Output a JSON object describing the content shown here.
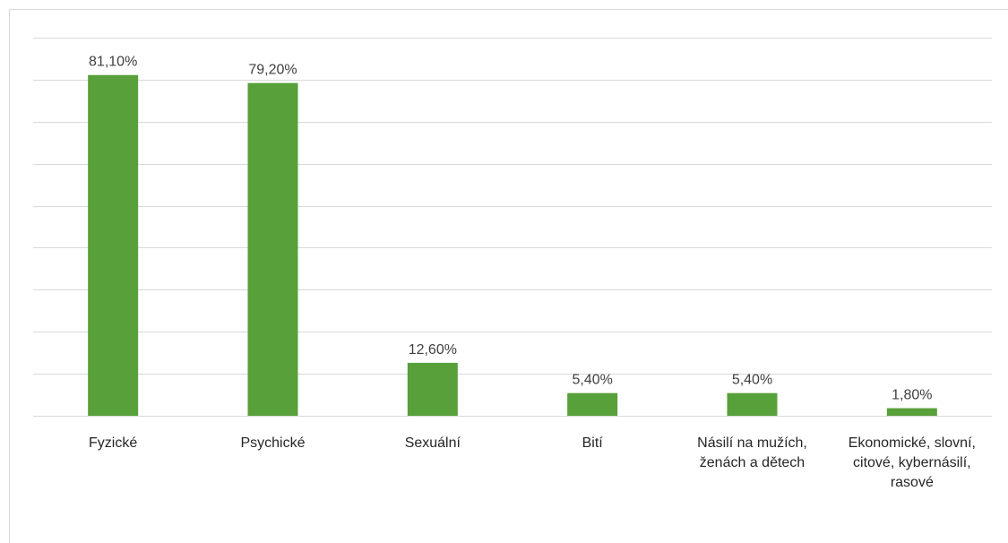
{
  "chart_data": {
    "type": "bar",
    "categories": [
      "Fyzické",
      "Psychické",
      "Sexuální",
      "Bití",
      "Násilí na mužích, ženách a dětech",
      "Ekonomické, slovní, citové, kybernásilí, rasové"
    ],
    "values": [
      81.1,
      79.2,
      12.6,
      5.4,
      5.4,
      1.8
    ],
    "value_labels": [
      "81,10%",
      "79,20%",
      "12,60%",
      "5,40%",
      "5,40%",
      "1,80%"
    ],
    "color": "#57a03a",
    "ylim": [
      0,
      90
    ],
    "yticks": [
      0,
      10,
      20,
      30,
      40,
      50,
      60,
      70,
      80,
      90
    ],
    "grid": true
  }
}
